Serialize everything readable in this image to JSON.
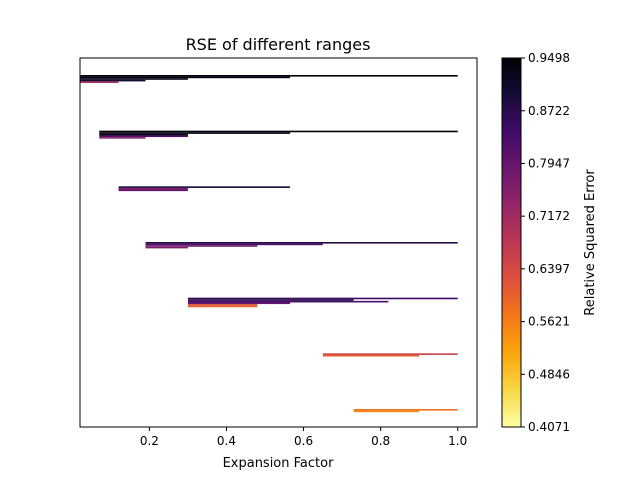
{
  "chart_data": {
    "type": "bar",
    "orientation": "horizontal-ranges",
    "title": "RSE of different ranges",
    "xlabel": "Expansion Factor",
    "ylabel": "",
    "xlim": [
      0.02,
      1.05
    ],
    "xticks": [
      0.2,
      0.4,
      0.6,
      0.8,
      1.0
    ],
    "xtick_labels": [
      "0.2",
      "0.4",
      "0.6",
      "0.8",
      "1.0"
    ],
    "yticks_visible": false,
    "grid": false,
    "colormap": "inferno_r",
    "colorbar": {
      "label": "Relative Squared Error",
      "min": 0.4071,
      "max": 0.9498,
      "tick_values": [
        0.4071,
        0.4846,
        0.5621,
        0.6397,
        0.7172,
        0.7947,
        0.8722,
        0.9498
      ],
      "tick_labels": [
        "0.4071",
        "0.4846",
        "0.5621",
        "0.6397",
        "0.7172",
        "0.7947",
        "0.8722",
        "0.9498"
      ]
    },
    "groups": [
      {
        "start": 0.02,
        "segments": [
          {
            "x0": 0.02,
            "x1": 1.0,
            "rse": 0.945,
            "offset": 0
          },
          {
            "x0": 0.02,
            "x1": 0.565,
            "rse": 0.935,
            "offset": 1
          },
          {
            "x0": 0.02,
            "x1": 0.3,
            "rse": 0.93,
            "offset": 2
          },
          {
            "x0": 0.02,
            "x1": 0.19,
            "rse": 0.9,
            "offset": 3
          },
          {
            "x0": 0.02,
            "x1": 0.12,
            "rse": 0.7,
            "offset": 4
          }
        ]
      },
      {
        "start": 0.07,
        "segments": [
          {
            "x0": 0.07,
            "x1": 1.0,
            "rse": 0.945,
            "offset": 0
          },
          {
            "x0": 0.07,
            "x1": 0.565,
            "rse": 0.94,
            "offset": 1
          },
          {
            "x0": 0.07,
            "x1": 0.3,
            "rse": 0.92,
            "offset": 2
          },
          {
            "x0": 0.07,
            "x1": 0.3,
            "rse": 0.82,
            "offset": 3
          },
          {
            "x0": 0.07,
            "x1": 0.19,
            "rse": 0.74,
            "offset": 4
          }
        ]
      },
      {
        "start": 0.12,
        "segments": [
          {
            "x0": 0.12,
            "x1": 0.565,
            "rse": 0.9,
            "offset": 0
          },
          {
            "x0": 0.12,
            "x1": 0.3,
            "rse": 0.76,
            "offset": 1
          },
          {
            "x0": 0.12,
            "x1": 0.3,
            "rse": 0.8,
            "offset": 2
          }
        ]
      },
      {
        "start": 0.19,
        "segments": [
          {
            "x0": 0.19,
            "x1": 1.0,
            "rse": 0.88,
            "offset": 0
          },
          {
            "x0": 0.19,
            "x1": 0.65,
            "rse": 0.82,
            "offset": 1
          },
          {
            "x0": 0.19,
            "x1": 0.48,
            "rse": 0.78,
            "offset": 2
          },
          {
            "x0": 0.19,
            "x1": 0.3,
            "rse": 0.76,
            "offset": 3
          }
        ]
      },
      {
        "start": 0.3,
        "segments": [
          {
            "x0": 0.3,
            "x1": 1.0,
            "rse": 0.85,
            "offset": 0
          },
          {
            "x0": 0.3,
            "x1": 0.73,
            "rse": 0.88,
            "offset": 1
          },
          {
            "x0": 0.3,
            "x1": 0.82,
            "rse": 0.83,
            "offset": 2
          },
          {
            "x0": 0.3,
            "x1": 0.565,
            "rse": 0.8,
            "offset": 3
          },
          {
            "x0": 0.3,
            "x1": 0.48,
            "rse": 0.63,
            "offset": 4
          },
          {
            "x0": 0.3,
            "x1": 0.48,
            "rse": 0.6,
            "offset": 5
          }
        ]
      },
      {
        "start": 0.65,
        "segments": [
          {
            "x0": 0.65,
            "x1": 1.0,
            "rse": 0.66,
            "offset": 0
          },
          {
            "x0": 0.65,
            "x1": 0.9,
            "rse": 0.6,
            "offset": 1
          }
        ]
      },
      {
        "start": 0.73,
        "segments": [
          {
            "x0": 0.73,
            "x1": 1.0,
            "rse": 0.58,
            "offset": 0
          },
          {
            "x0": 0.73,
            "x1": 0.9,
            "rse": 0.55,
            "offset": 1
          }
        ]
      }
    ]
  }
}
